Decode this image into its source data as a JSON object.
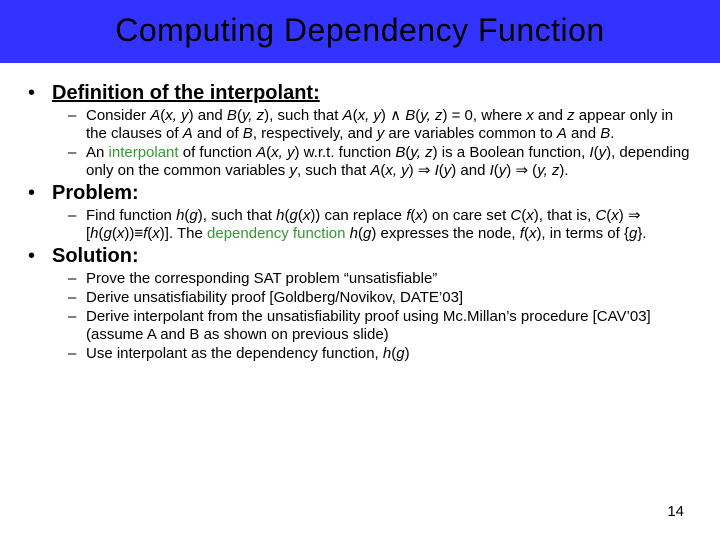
{
  "colors": {
    "title_bar_bg": "#3333ff",
    "page_bg": "#ffffff",
    "text": "#000000",
    "accent_green": "#339933"
  },
  "typography": {
    "title_fontsize": 32,
    "heading_fontsize": 20,
    "body_fontsize": 15,
    "font_family": "Arial"
  },
  "title": "Computing Dependency Function",
  "sections": [
    {
      "heading": "Definition of the interpolant:",
      "underline": true,
      "items": [
        {
          "html": "Consider <span class='italic'>A</span>(<span class='italic'>x, y</span>) and <span class='italic'>B</span>(<span class='italic'>y, z</span>), such that <span class='italic'>A</span>(<span class='italic'>x, y</span>) &and; <span class='italic'>B</span>(<span class='italic'>y, z</span>) = 0, where <span class='italic'>x</span> and <span class='italic'>z</span> appear only in the clauses of <span class='italic'>A</span> and of <span class='italic'>B</span>, respectively, and <span class='italic'>y</span> are variables common to <span class='italic'>A</span> and <span class='italic'>B</span>."
        },
        {
          "html": "An <span class='green'>interpolant</span> of function <span class='italic'>A</span>(<span class='italic'>x, y</span>) w.r.t. function <span class='italic'>B</span>(<span class='italic'>y, z</span>) is a Boolean function, <span class='italic'>I</span>(<span class='italic'>y</span>), depending only on the common variables <span class='italic'>y</span>, such that <span class='italic'>A</span>(<span class='italic'>x, y</span>) &rArr; <span class='italic'>I</span>(<span class='italic'>y</span>) and <span class='italic'>I</span>(<span class='italic'>y</span>) &rArr; (<span class='italic'>y, z</span>)."
        }
      ]
    },
    {
      "heading": "Problem:",
      "underline": false,
      "items": [
        {
          "html": "Find function <span class='italic'>h</span>(<span class='italic'>g</span>), such that <span class='italic'>h</span>(<span class='italic'>g</span>(<span class='italic'>x</span>)) can replace <span class='italic'>f</span>(<span class='italic'>x</span>) on care set <span class='italic'>C</span>(<span class='italic'>x</span>), that is, <span class='italic'>C</span>(<span class='italic'>x</span>) &rArr; [<span class='italic'>h</span>(<span class='italic'>g</span>(<span class='italic'>x</span>))&equiv;<span class='italic'>f</span>(<span class='italic'>x</span>)]. The <span class='green'>dependency function</span> <span class='italic'>h</span>(<span class='italic'>g</span>) expresses the node, <span class='italic'>f</span>(<span class='italic'>x</span>), in terms of {<span class='italic'>g</span>}."
        }
      ]
    },
    {
      "heading": "Solution:",
      "underline": false,
      "items": [
        {
          "html": "Prove the corresponding SAT problem &ldquo;unsatisfiable&rdquo;"
        },
        {
          "html": "Derive unsatisfiability proof [Goldberg/Novikov, DATE&rsquo;03]"
        },
        {
          "html": "Derive interpolant from the unsatisfiability proof using Mc.Millan&rsquo;s procedure [CAV&rsquo;03] (assume A and B as shown on previous slide)"
        },
        {
          "html": "Use interpolant as the dependency function, <span class='italic'>h</span>(<span class='italic'>g</span>)"
        }
      ]
    }
  ],
  "page_number": "14"
}
